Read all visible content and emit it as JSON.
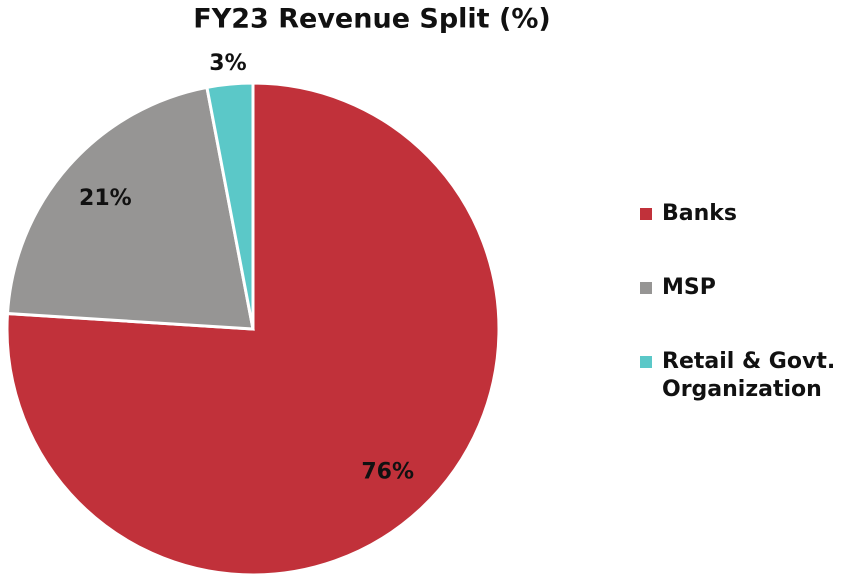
{
  "chart_data": {
    "type": "pie",
    "title": "FY23 Revenue Split (%)",
    "categories": [
      "Banks",
      "MSP",
      "Retail & Govt. Organization"
    ],
    "values": [
      76,
      21,
      3
    ],
    "value_labels": [
      "76%",
      "21%",
      "3%"
    ],
    "colors": [
      "#c1313a",
      "#969594",
      "#5bc8c8"
    ],
    "legend": "right"
  }
}
